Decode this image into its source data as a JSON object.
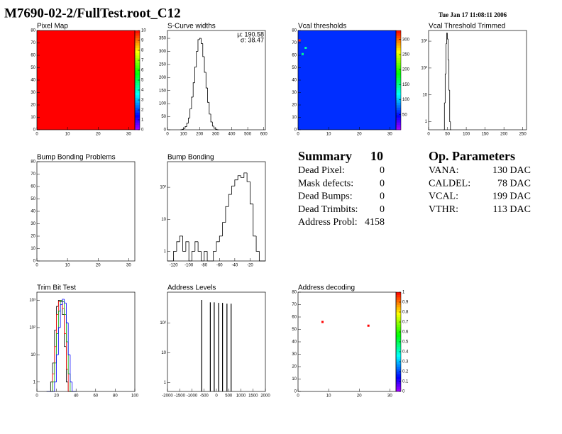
{
  "header": {
    "title": "M7690-02-2/FullTest.root_C12",
    "date": "Tue Jan 17 11:08:11 2006"
  },
  "chart_data": [
    {
      "type": "heatmap",
      "title": "Pixel Map",
      "xlim": [
        0,
        32
      ],
      "xticks": [
        0,
        10,
        20,
        30
      ],
      "ylim": [
        0,
        80
      ],
      "yticks": [
        0,
        10,
        20,
        30,
        40,
        50,
        60,
        70,
        80
      ],
      "fill_value": 10,
      "zlim": [
        0,
        10
      ],
      "zticks": [
        0,
        1,
        2,
        3,
        4,
        5,
        6,
        7,
        8,
        9,
        10
      ]
    },
    {
      "type": "histogram",
      "title": "S-Curve widths",
      "xlim": [
        0,
        610
      ],
      "xticks": [
        0,
        100,
        200,
        300,
        400,
        500,
        600
      ],
      "ylim": [
        0,
        380
      ],
      "yticks": [
        0,
        50,
        100,
        150,
        200,
        250,
        300,
        350
      ],
      "stats": [
        "μ: 190.58",
        "σ: 38.47"
      ],
      "color": "#000000",
      "bins": [
        80,
        90,
        100,
        110,
        120,
        130,
        140,
        150,
        160,
        170,
        180,
        190,
        200,
        210,
        220,
        230,
        240,
        250,
        260,
        270,
        280,
        290,
        300,
        310,
        320
      ],
      "values": [
        0,
        2,
        5,
        12,
        25,
        45,
        80,
        125,
        180,
        240,
        300,
        345,
        350,
        330,
        280,
        220,
        160,
        105,
        60,
        30,
        14,
        6,
        2,
        0
      ]
    },
    {
      "type": "heatmap",
      "title": "Vcal thresholds",
      "xlim": [
        0,
        32
      ],
      "xticks": [
        0,
        10,
        20,
        30
      ],
      "ylim": [
        0,
        80
      ],
      "yticks": [
        0,
        10,
        20,
        30,
        40,
        50,
        60,
        70,
        80
      ],
      "fill_value": 60,
      "zlim": [
        0,
        330
      ],
      "zticks": [
        50,
        100,
        150,
        200,
        250,
        300
      ],
      "points": [
        {
          "x": 0.5,
          "y": 72,
          "z": 320
        },
        {
          "x": 1.5,
          "y": 61,
          "z": 150
        },
        {
          "x": 2.5,
          "y": 66,
          "z": 140
        }
      ]
    },
    {
      "type": "histogram",
      "title": "Vcal Threshold Trimmed",
      "log_y": true,
      "xlim": [
        0,
        260
      ],
      "xticks": [
        0,
        50,
        100,
        150,
        200,
        250
      ],
      "ylim": [
        0.5,
        2500
      ],
      "yticks": [
        1,
        10,
        {
          "value": 100,
          "label": "10²"
        },
        {
          "value": 1000,
          "label": "10³"
        }
      ],
      "color": "#000000",
      "bins": [
        40,
        42,
        44,
        46,
        48,
        50,
        52,
        54,
        56,
        58,
        60
      ],
      "values": [
        0,
        5,
        60,
        800,
        2000,
        1200,
        200,
        15,
        1,
        0
      ]
    },
    {
      "type": "heatmap",
      "title": "Bump Bonding Problems",
      "xlim": [
        0,
        32
      ],
      "xticks": [
        0,
        10,
        20,
        30
      ],
      "ylim": [
        0,
        80
      ],
      "yticks": [
        0,
        10,
        20,
        30,
        40,
        50,
        60,
        70,
        80
      ]
    },
    {
      "type": "histogram",
      "title": "Bump Bonding",
      "log_y": true,
      "xlim": [
        -128,
        0
      ],
      "xticks": [
        -120,
        -100,
        -80,
        -60,
        -40,
        -20
      ],
      "ylim": [
        0.5,
        630
      ],
      "yticks": [
        1,
        10,
        {
          "value": 100,
          "label": "10²"
        }
      ],
      "color": "#000000",
      "bins": [
        -128,
        -124,
        -120,
        -116,
        -112,
        -108,
        -104,
        -100,
        -96,
        -92,
        -88,
        -84,
        -80,
        -76,
        -72,
        -68,
        -64,
        -60,
        -56,
        -52,
        -48,
        -44,
        -40,
        -36,
        -32,
        -28,
        -24,
        -20,
        -16,
        -12,
        -8,
        -4,
        0
      ],
      "values": [
        0,
        0,
        1,
        2,
        3,
        1,
        2,
        0,
        1,
        2,
        1,
        0,
        1,
        0,
        0,
        1,
        2,
        3,
        8,
        25,
        60,
        110,
        170,
        230,
        200,
        280,
        150,
        30,
        3,
        1,
        0,
        0
      ]
    },
    {
      "type": "histogram",
      "title": "Trim Bit Test",
      "log_y": true,
      "xlim": [
        0,
        100
      ],
      "xticks": [
        0,
        20,
        40,
        60,
        80,
        100
      ],
      "ylim": [
        0.45,
        2000
      ],
      "yticks": [
        1,
        10,
        {
          "value": 100,
          "label": "10²"
        },
        {
          "value": 1000,
          "label": "10³"
        }
      ],
      "bins": [
        10,
        12,
        14,
        16,
        18,
        20,
        22,
        24,
        26,
        28,
        30,
        32,
        34,
        36,
        38,
        40
      ],
      "series": [
        {
          "color": "#000000",
          "values": [
            0,
            0,
            1,
            5,
            80,
            600,
            1000,
            900,
            300,
            20,
            1,
            0,
            0,
            0,
            0
          ]
        },
        {
          "color": "#ff0000",
          "values": [
            0,
            0,
            0,
            2,
            20,
            300,
            900,
            1000,
            500,
            60,
            3,
            0,
            0,
            0,
            0
          ]
        },
        {
          "color": "#00aa00",
          "values": [
            0,
            0,
            0,
            1,
            5,
            60,
            400,
            1000,
            900,
            300,
            30,
            2,
            0,
            0,
            0
          ]
        },
        {
          "color": "#0000ff",
          "values": [
            0,
            0,
            0,
            0,
            1,
            10,
            100,
            700,
            1100,
            800,
            150,
            10,
            1,
            0,
            0
          ]
        }
      ]
    },
    {
      "type": "spikes",
      "title": "Address Levels",
      "log_y": true,
      "xlim": [
        -2000,
        2000
      ],
      "xticks": [
        -2000,
        -1500,
        -1000,
        -500,
        0,
        500,
        1000,
        1500,
        2000
      ],
      "ylim": [
        0.5,
        1100
      ],
      "yticks": [
        1,
        10,
        {
          "value": 100,
          "label": "10²"
        }
      ],
      "color": "#000000",
      "x": [
        -600,
        -250,
        -90,
        90,
        250,
        430,
        600
      ],
      "values": [
        600,
        500,
        500,
        480,
        480,
        450,
        450
      ]
    },
    {
      "type": "heatmap",
      "title": "Address decoding",
      "xlim": [
        0,
        32
      ],
      "xticks": [
        0,
        10,
        20,
        30
      ],
      "ylim": [
        0,
        80
      ],
      "yticks": [
        0,
        10,
        20,
        30,
        40,
        50,
        60,
        70,
        80
      ],
      "zlim": [
        0,
        1
      ],
      "zticks": [
        0,
        0.1,
        0.2,
        0.3,
        0.4,
        0.5,
        0.6,
        0.7,
        0.8,
        0.9,
        1
      ],
      "points": [
        {
          "x": 8,
          "y": 56,
          "z": 1
        },
        {
          "x": 23,
          "y": 53,
          "z": 1
        }
      ]
    }
  ],
  "summary": {
    "title": "Summary",
    "count": 10,
    "rows": [
      {
        "label": "Dead Pixel:",
        "value": 0
      },
      {
        "label": "Mask defects:",
        "value": 0
      },
      {
        "label": "Dead Bumps:",
        "value": 0
      },
      {
        "label": "Dead Trimbits:",
        "value": 0
      },
      {
        "label": "Address Probl:",
        "value": 4158
      }
    ]
  },
  "parameters": {
    "title": "Op. Parameters",
    "rows": [
      {
        "label": "VANA:",
        "value": "130 DAC"
      },
      {
        "label": "CALDEL:",
        "value": "78 DAC"
      },
      {
        "label": "VCAL:",
        "value": "199 DAC"
      },
      {
        "label": "VTHR:",
        "value": "113 DAC"
      }
    ]
  }
}
